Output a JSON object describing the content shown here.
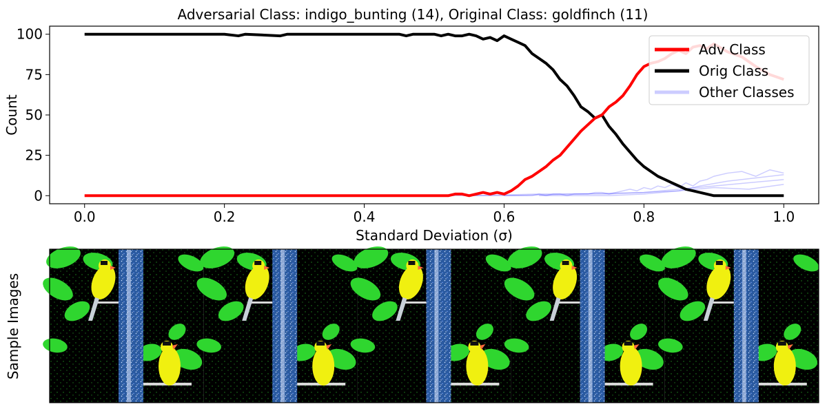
{
  "chart_data": [
    {
      "type": "line",
      "title": "Adversarial Class: indigo_bunting (14), Original Class: goldfinch (11)",
      "xlabel": "Standard Deviation (σ)",
      "ylabel": "Count",
      "xlim": [
        -0.05,
        1.05
      ],
      "ylim": [
        -5,
        105
      ],
      "xticks": [
        0.0,
        0.2,
        0.4,
        0.6,
        0.8,
        1.0
      ],
      "yticks": [
        0,
        25,
        50,
        75,
        100
      ],
      "x_tick_labels": [
        "0.0",
        "0.2",
        "0.4",
        "0.6",
        "0.8",
        "1.0"
      ],
      "y_tick_labels": [
        "0",
        "25",
        "50",
        "75",
        "100"
      ],
      "grid": false,
      "legend_placement": "top-right",
      "x": [
        0.0,
        0.1,
        0.2,
        0.22,
        0.23,
        0.28,
        0.29,
        0.3,
        0.4,
        0.45,
        0.46,
        0.47,
        0.5,
        0.51,
        0.52,
        0.53,
        0.54,
        0.55,
        0.56,
        0.57,
        0.58,
        0.59,
        0.6,
        0.61,
        0.62,
        0.63,
        0.64,
        0.65,
        0.66,
        0.67,
        0.68,
        0.69,
        0.7,
        0.71,
        0.72,
        0.73,
        0.74,
        0.75,
        0.76,
        0.77,
        0.78,
        0.79,
        0.8,
        0.81,
        0.82,
        0.83,
        0.84,
        0.85,
        0.86,
        0.87,
        0.88,
        0.89,
        0.9,
        0.92,
        0.94,
        0.96,
        0.98,
        1.0
      ],
      "series": [
        {
          "name": "Adv Class",
          "color": "#ff0000",
          "values": [
            0,
            0,
            0,
            0,
            0,
            0,
            0,
            0,
            0,
            0,
            0,
            0,
            0,
            0,
            0,
            1,
            1,
            0,
            1,
            2,
            1,
            2,
            1,
            3,
            6,
            10,
            12,
            15,
            18,
            22,
            25,
            30,
            35,
            40,
            44,
            48,
            50,
            55,
            58,
            62,
            68,
            75,
            80,
            82,
            83,
            85,
            88,
            90,
            88,
            92,
            93,
            91,
            94,
            89,
            86,
            80,
            75,
            72
          ],
          "line_width": 4,
          "opacity": 1
        },
        {
          "name": "Orig Class",
          "color": "#000000",
          "values": [
            100,
            100,
            100,
            99,
            100,
            99,
            100,
            100,
            100,
            100,
            99,
            100,
            100,
            99,
            100,
            99,
            99,
            100,
            99,
            97,
            98,
            96,
            99,
            97,
            95,
            93,
            88,
            85,
            82,
            78,
            72,
            68,
            62,
            55,
            52,
            48,
            50,
            43,
            38,
            32,
            27,
            22,
            18,
            15,
            12,
            10,
            8,
            6,
            4,
            3,
            2,
            1,
            0,
            0,
            0,
            0,
            0,
            0
          ],
          "line_width": 4,
          "opacity": 1
        },
        {
          "name": "Other Classes",
          "color": "#0000ff",
          "values": [
            0,
            0,
            0,
            0,
            0,
            0,
            0,
            0,
            0,
            0,
            0,
            0,
            0,
            0,
            0,
            0,
            0,
            0,
            0,
            0,
            0,
            0,
            0,
            0,
            0,
            0,
            0,
            1,
            0,
            1,
            1,
            0,
            1,
            1,
            1,
            2,
            2,
            1,
            2,
            3,
            4,
            3,
            5,
            4,
            6,
            5,
            7,
            5,
            8,
            6,
            9,
            10,
            12,
            14,
            15,
            12,
            16,
            14
          ],
          "line_width": 4,
          "opacity": 0.2
        }
      ],
      "extra_light_blue_lines": [
        {
          "x": [
            0.55,
            0.65,
            0.75,
            0.8,
            0.85,
            0.9,
            0.95,
            1.0
          ],
          "values": [
            0,
            1,
            1,
            2,
            4,
            6,
            8,
            10
          ]
        },
        {
          "x": [
            0.6,
            0.7,
            0.8,
            0.85,
            0.9,
            0.95,
            1.0
          ],
          "values": [
            0,
            1,
            2,
            3,
            5,
            4,
            7
          ]
        },
        {
          "x": [
            0.65,
            0.75,
            0.8,
            0.85,
            0.88,
            0.92,
            0.96,
            1.0
          ],
          "values": [
            0,
            0,
            1,
            3,
            6,
            9,
            11,
            13
          ]
        }
      ]
    },
    {
      "type": "image_strip",
      "ylabel": "Sample Images",
      "tiles": 5,
      "subject": "goldfinch",
      "colors": {
        "background": "#000000",
        "leaf": "#2fd62f",
        "bird": "#f0f010",
        "pole": "#2a5aa0",
        "noise": "#9fc4ff"
      }
    }
  ]
}
